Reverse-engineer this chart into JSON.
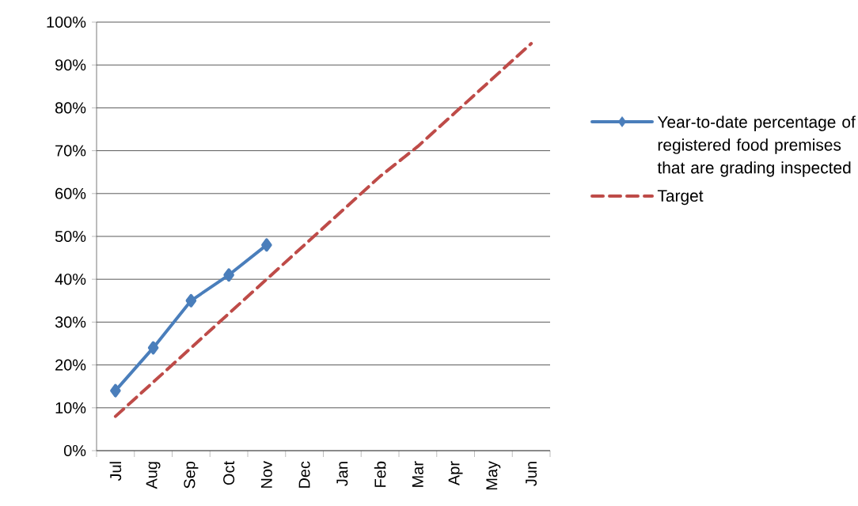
{
  "chart_data": {
    "type": "line",
    "categories": [
      "Jul",
      "Aug",
      "Sep",
      "Oct",
      "Nov",
      "Dec",
      "Jan",
      "Feb",
      "Mar",
      "Apr",
      "May",
      "Jun"
    ],
    "series": [
      {
        "name": "Year-to-date percentage of registered food premises that are grading inspected",
        "color": "#4a7ebb",
        "values": [
          14,
          24,
          35,
          41,
          48,
          null,
          null,
          null,
          null,
          null,
          null,
          null
        ],
        "marker": "diamond",
        "line_style": "solid"
      },
      {
        "name": "Target",
        "color": "#be4b48",
        "values": [
          8,
          16,
          24,
          32,
          40,
          48,
          56,
          64,
          71,
          79,
          87,
          95
        ],
        "marker": "none",
        "line_style": "dashed"
      }
    ],
    "ylim": [
      0,
      100
    ],
    "yticks": [
      {
        "value": 0,
        "label": "0%"
      },
      {
        "value": 10,
        "label": "10%"
      },
      {
        "value": 20,
        "label": "20%"
      },
      {
        "value": 30,
        "label": "30%"
      },
      {
        "value": 40,
        "label": "40%"
      },
      {
        "value": 50,
        "label": "50%"
      },
      {
        "value": 60,
        "label": "60%"
      },
      {
        "value": 70,
        "label": "70%"
      },
      {
        "value": 80,
        "label": "80%"
      },
      {
        "value": 90,
        "label": "90%"
      },
      {
        "value": 100,
        "label": "100%"
      }
    ],
    "grid": "y",
    "legend": "right"
  }
}
